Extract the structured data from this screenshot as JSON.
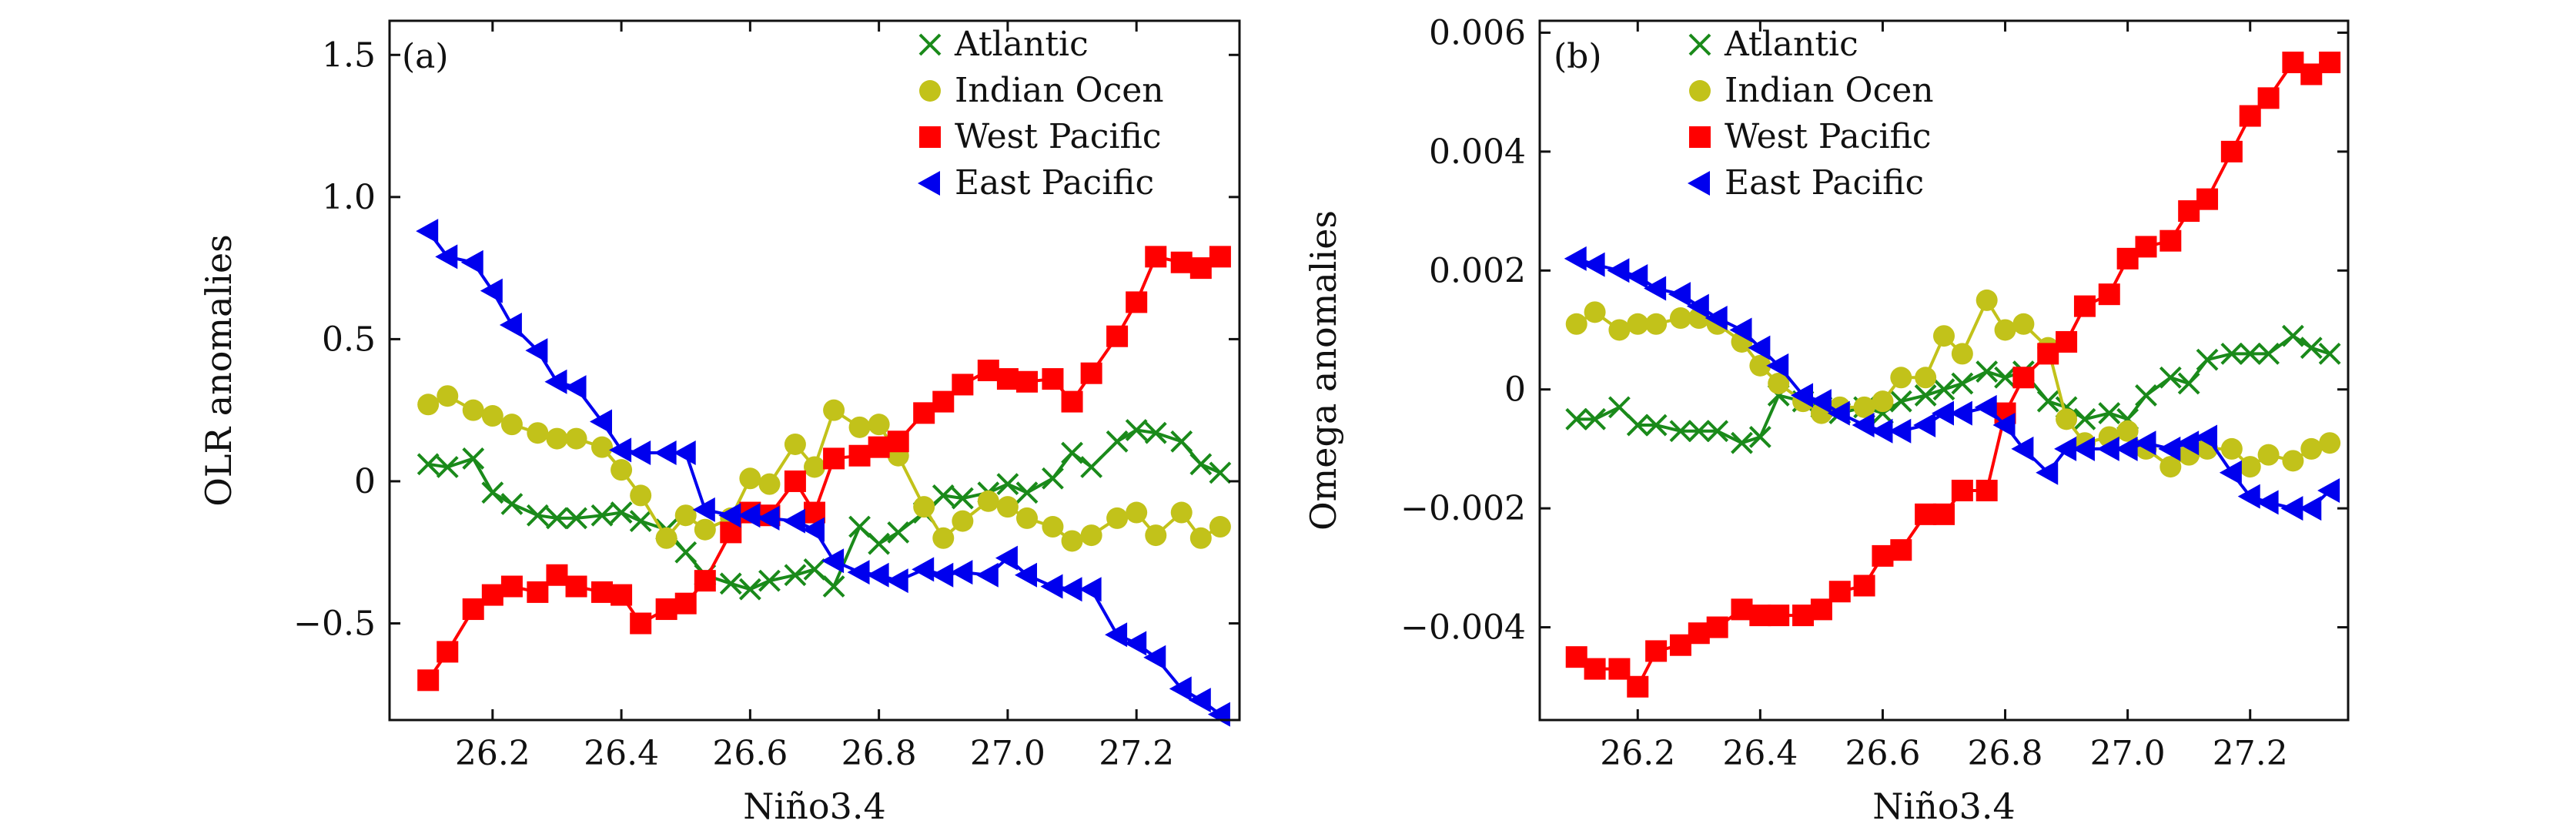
{
  "chart_data": [
    {
      "type": "line",
      "panel_label": "(a)",
      "xlabel": "Niño3.4",
      "ylabel": "OLR anomalies",
      "xlim": [
        26.04,
        27.36
      ],
      "ylim": [
        -0.84,
        1.62
      ],
      "xticks": [
        26.2,
        26.4,
        26.6,
        26.8,
        27.0,
        27.2
      ],
      "xtick_labels": [
        "26.2",
        "26.4",
        "26.6",
        "26.8",
        "27.0",
        "27.2"
      ],
      "yticks": [
        -0.5,
        0,
        0.5,
        1.0,
        1.5
      ],
      "ytick_labels": [
        "−0.5",
        "0",
        "0.5",
        "1.0",
        "1.5"
      ],
      "legend_position": "top-right",
      "grid": false,
      "series": [
        {
          "name": "Atlantic",
          "marker": "x",
          "color": "#1a8a1a",
          "x": [
            26.1,
            26.13,
            26.17,
            26.2,
            26.23,
            26.27,
            26.3,
            26.33,
            26.37,
            26.4,
            26.43,
            26.47,
            26.5,
            26.53,
            26.57,
            26.6,
            26.63,
            26.67,
            26.7,
            26.73,
            26.77,
            26.8,
            26.83,
            26.87,
            26.9,
            26.93,
            26.97,
            27.0,
            27.03,
            27.07,
            27.1,
            27.13,
            27.17,
            27.2,
            27.23,
            27.27,
            27.3,
            27.33
          ],
          "y": [
            0.06,
            0.05,
            0.08,
            -0.04,
            -0.08,
            -0.12,
            -0.13,
            -0.13,
            -0.12,
            -0.11,
            -0.14,
            -0.17,
            -0.25,
            -0.33,
            -0.36,
            -0.38,
            -0.35,
            -0.33,
            -0.31,
            -0.37,
            -0.16,
            -0.22,
            -0.18,
            -0.11,
            -0.05,
            -0.06,
            -0.04,
            -0.01,
            -0.04,
            0.01,
            0.1,
            0.05,
            0.14,
            0.18,
            0.17,
            0.14,
            0.06,
            0.03
          ]
        },
        {
          "name": "Indian Ocen",
          "marker": "circle",
          "color": "#c2c21a",
          "x": [
            26.1,
            26.13,
            26.17,
            26.2,
            26.23,
            26.27,
            26.3,
            26.33,
            26.37,
            26.4,
            26.43,
            26.47,
            26.5,
            26.53,
            26.57,
            26.6,
            26.63,
            26.67,
            26.7,
            26.73,
            26.77,
            26.8,
            26.83,
            26.87,
            26.9,
            26.93,
            26.97,
            27.0,
            27.03,
            27.07,
            27.1,
            27.13,
            27.17,
            27.2,
            27.23,
            27.27,
            27.3,
            27.33
          ],
          "y": [
            0.27,
            0.3,
            0.25,
            0.23,
            0.2,
            0.17,
            0.15,
            0.15,
            0.12,
            0.04,
            -0.05,
            -0.2,
            -0.12,
            -0.17,
            -0.13,
            0.01,
            -0.01,
            0.13,
            0.05,
            0.25,
            0.19,
            0.2,
            0.09,
            -0.09,
            -0.2,
            -0.14,
            -0.07,
            -0.09,
            -0.13,
            -0.16,
            -0.21,
            -0.19,
            -0.13,
            -0.11,
            -0.19,
            -0.11,
            -0.2,
            -0.16
          ]
        },
        {
          "name": "West Pacific",
          "marker": "square",
          "color": "#ff0000",
          "x": [
            26.1,
            26.13,
            26.17,
            26.2,
            26.23,
            26.27,
            26.3,
            26.33,
            26.37,
            26.4,
            26.43,
            26.47,
            26.5,
            26.53,
            26.57,
            26.6,
            26.63,
            26.67,
            26.7,
            26.73,
            26.77,
            26.8,
            26.83,
            26.87,
            26.9,
            26.93,
            26.97,
            27.0,
            27.03,
            27.07,
            27.1,
            27.13,
            27.17,
            27.2,
            27.23,
            27.27,
            27.3,
            27.33
          ],
          "y": [
            -0.7,
            -0.6,
            -0.45,
            -0.4,
            -0.37,
            -0.39,
            -0.33,
            -0.37,
            -0.39,
            -0.4,
            -0.5,
            -0.45,
            -0.43,
            -0.35,
            -0.18,
            -0.11,
            -0.12,
            0.0,
            -0.11,
            0.08,
            0.09,
            0.12,
            0.14,
            0.24,
            0.28,
            0.34,
            0.39,
            0.36,
            0.35,
            0.36,
            0.28,
            0.38,
            0.51,
            0.63,
            0.79,
            0.77,
            0.75,
            0.79
          ]
        },
        {
          "name": "East Pacific",
          "marker": "triangle-left",
          "color": "#0000ee",
          "x": [
            26.1,
            26.13,
            26.17,
            26.2,
            26.23,
            26.27,
            26.3,
            26.33,
            26.37,
            26.4,
            26.43,
            26.47,
            26.5,
            26.53,
            26.57,
            26.6,
            26.63,
            26.67,
            26.7,
            26.73,
            26.77,
            26.8,
            26.83,
            26.87,
            26.9,
            26.93,
            26.97,
            27.0,
            27.03,
            27.07,
            27.1,
            27.13,
            27.17,
            27.2,
            27.23,
            27.27,
            27.3,
            27.33
          ],
          "y": [
            0.88,
            0.79,
            0.77,
            0.67,
            0.55,
            0.46,
            0.35,
            0.33,
            0.21,
            0.11,
            0.1,
            0.1,
            0.1,
            -0.1,
            -0.12,
            -0.12,
            -0.13,
            -0.14,
            -0.17,
            -0.28,
            -0.32,
            -0.33,
            -0.35,
            -0.31,
            -0.33,
            -0.32,
            -0.33,
            -0.27,
            -0.33,
            -0.37,
            -0.38,
            -0.38,
            -0.54,
            -0.57,
            -0.62,
            -0.73,
            -0.77,
            -0.82
          ]
        }
      ]
    },
    {
      "type": "line",
      "panel_label": "(b)",
      "xlabel": "Niño3.4",
      "ylabel": "Omega anomalies",
      "xlim": [
        26.04,
        27.36
      ],
      "ylim": [
        -0.00556,
        0.0062
      ],
      "xticks": [
        26.2,
        26.4,
        26.6,
        26.8,
        27.0,
        27.2
      ],
      "xtick_labels": [
        "26.2",
        "26.4",
        "26.6",
        "26.8",
        "27.0",
        "27.2"
      ],
      "yticks": [
        -0.004,
        -0.002,
        0,
        0.002,
        0.004,
        0.006
      ],
      "ytick_labels": [
        "−0.004",
        "−0.002",
        "0",
        "0.002",
        "0.004",
        "0.006"
      ],
      "legend_position": "top-right",
      "grid": false,
      "series": [
        {
          "name": "Atlantic",
          "marker": "x",
          "color": "#1a8a1a",
          "x": [
            26.1,
            26.13,
            26.17,
            26.2,
            26.23,
            26.27,
            26.3,
            26.33,
            26.37,
            26.4,
            26.43,
            26.47,
            26.5,
            26.53,
            26.57,
            26.6,
            26.63,
            26.67,
            26.7,
            26.73,
            26.77,
            26.8,
            26.83,
            26.87,
            26.9,
            26.93,
            26.97,
            27.0,
            27.03,
            27.07,
            27.1,
            27.13,
            27.17,
            27.2,
            27.23,
            27.27,
            27.3,
            27.33
          ],
          "y": [
            -0.0005,
            -0.0005,
            -0.0003,
            -0.0006,
            -0.0006,
            -0.0007,
            -0.0007,
            -0.0007,
            -0.0009,
            -0.0008,
            -0.0001,
            -0.0002,
            -0.0003,
            -0.0004,
            -0.0003,
            -0.0004,
            -0.0002,
            -0.0001,
            0.0,
            0.0001,
            0.0003,
            0.0002,
            0.0003,
            -0.0002,
            -0.0003,
            -0.0005,
            -0.0004,
            -0.0005,
            -0.0001,
            0.0002,
            0.0001,
            0.0005,
            0.0006,
            0.0006,
            0.0006,
            0.0009,
            0.0007,
            0.0006
          ]
        },
        {
          "name": "Indian Ocen",
          "marker": "circle",
          "color": "#c2c21a",
          "x": [
            26.1,
            26.13,
            26.17,
            26.2,
            26.23,
            26.27,
            26.3,
            26.33,
            26.37,
            26.4,
            26.43,
            26.47,
            26.5,
            26.53,
            26.57,
            26.6,
            26.63,
            26.67,
            26.7,
            26.73,
            26.77,
            26.8,
            26.83,
            26.87,
            26.9,
            26.93,
            26.97,
            27.0,
            27.03,
            27.07,
            27.1,
            27.13,
            27.17,
            27.2,
            27.23,
            27.27,
            27.3,
            27.33
          ],
          "y": [
            0.0011,
            0.0013,
            0.001,
            0.0011,
            0.0011,
            0.0012,
            0.0012,
            0.0011,
            0.0008,
            0.0004,
            0.0001,
            -0.0002,
            -0.0004,
            -0.0003,
            -0.0003,
            -0.0002,
            0.0002,
            0.0002,
            0.0009,
            0.0006,
            0.0015,
            0.001,
            0.0011,
            0.0007,
            -0.0005,
            -0.0009,
            -0.0008,
            -0.0007,
            -0.001,
            -0.0013,
            -0.0011,
            -0.001,
            -0.001,
            -0.0013,
            -0.0011,
            -0.0012,
            -0.001,
            -0.0009
          ]
        },
        {
          "name": "West Pacific",
          "marker": "square",
          "color": "#ff0000",
          "x": [
            26.1,
            26.13,
            26.17,
            26.2,
            26.23,
            26.27,
            26.3,
            26.33,
            26.37,
            26.4,
            26.43,
            26.47,
            26.5,
            26.53,
            26.57,
            26.6,
            26.63,
            26.67,
            26.7,
            26.73,
            26.77,
            26.8,
            26.83,
            26.87,
            26.9,
            26.93,
            26.97,
            27.0,
            27.03,
            27.07,
            27.1,
            27.13,
            27.17,
            27.2,
            27.23,
            27.27,
            27.3,
            27.33
          ],
          "y": [
            -0.0045,
            -0.0047,
            -0.0047,
            -0.005,
            -0.0044,
            -0.0043,
            -0.0041,
            -0.004,
            -0.0037,
            -0.0038,
            -0.0038,
            -0.0038,
            -0.0037,
            -0.0034,
            -0.0033,
            -0.0028,
            -0.0027,
            -0.0021,
            -0.0021,
            -0.0017,
            -0.0017,
            -0.0004,
            0.0002,
            0.0006,
            0.0008,
            0.0014,
            0.0016,
            0.0022,
            0.0024,
            0.0025,
            0.003,
            0.0032,
            0.004,
            0.0046,
            0.0049,
            0.0055,
            0.0053,
            0.0055
          ]
        },
        {
          "name": "East Pacific",
          "marker": "triangle-left",
          "color": "#0000ee",
          "x": [
            26.1,
            26.13,
            26.17,
            26.2,
            26.23,
            26.27,
            26.3,
            26.33,
            26.37,
            26.4,
            26.43,
            26.47,
            26.5,
            26.53,
            26.57,
            26.6,
            26.63,
            26.67,
            26.7,
            26.73,
            26.77,
            26.8,
            26.83,
            26.87,
            26.9,
            26.93,
            26.97,
            27.0,
            27.03,
            27.07,
            27.1,
            27.13,
            27.17,
            27.2,
            27.23,
            27.27,
            27.3,
            27.33
          ],
          "y": [
            0.0022,
            0.0021,
            0.002,
            0.0019,
            0.0017,
            0.0016,
            0.0014,
            0.0012,
            0.001,
            0.0007,
            0.0004,
            -0.0001,
            -0.0002,
            -0.0004,
            -0.0006,
            -0.0007,
            -0.0007,
            -0.0006,
            -0.0004,
            -0.0004,
            -0.0003,
            -0.0006,
            -0.001,
            -0.0014,
            -0.001,
            -0.001,
            -0.001,
            -0.001,
            -0.0009,
            -0.001,
            -0.0009,
            -0.0008,
            -0.0014,
            -0.0018,
            -0.0019,
            -0.002,
            -0.002,
            -0.0017
          ]
        }
      ]
    }
  ]
}
